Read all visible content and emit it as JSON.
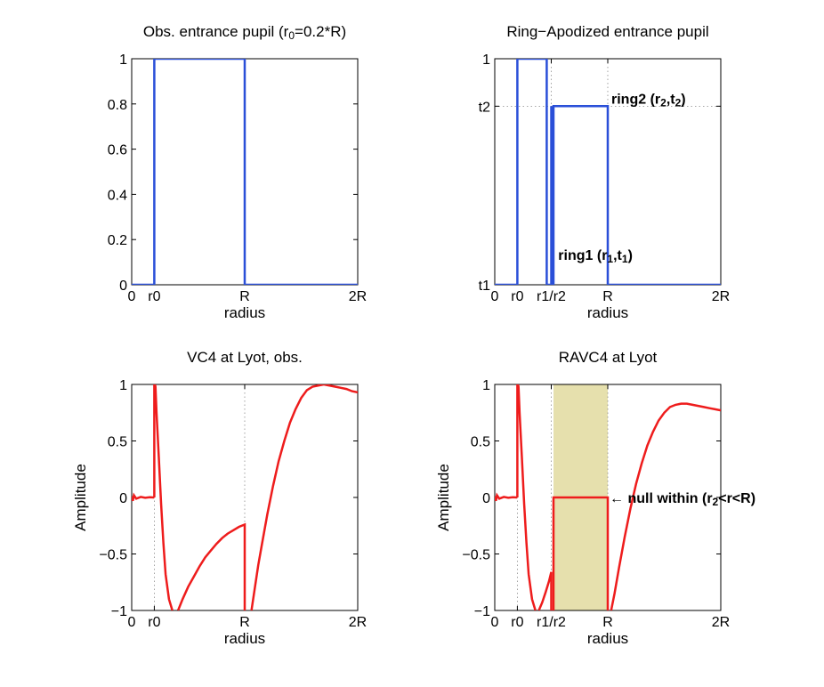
{
  "colors": {
    "pupil_line": "#2a4fd8",
    "amplitude_line": "#ee1c1c",
    "shade": "#e6e0ad",
    "grid": "#8c8c8c",
    "axis": "#000000"
  },
  "chart_data": [
    {
      "type": "line",
      "title_parts": [
        "Obs. entrance pupil (r",
        "0",
        "=0.2*R)"
      ],
      "xlabel": "radius",
      "ylabel": "",
      "xlim": [
        0,
        2
      ],
      "ylim": [
        0,
        1
      ],
      "xticks": [
        0,
        0.2,
        1,
        2
      ],
      "xticklabels": [
        "0",
        "r0",
        "R",
        "2R"
      ],
      "yticks": [
        0,
        0.2,
        0.4,
        0.6,
        0.8,
        1
      ],
      "yticklabels": [
        "0",
        "0.2",
        "0.4",
        "0.6",
        "0.8",
        "1"
      ],
      "grid_x": [
        0.2,
        1
      ],
      "series": [
        {
          "x": [
            0,
            0.2,
            0.2,
            1,
            1,
            2
          ],
          "y": [
            0,
            0,
            1,
            1,
            0,
            0
          ]
        }
      ]
    },
    {
      "type": "line",
      "title_parts": [
        "Ring−Apodized entrance pupil"
      ],
      "xlabel": "radius",
      "ylabel": "",
      "xlim": [
        0,
        2
      ],
      "ylim": [
        0,
        1
      ],
      "xticks": [
        0,
        0.2,
        0.5,
        1,
        2
      ],
      "xticklabels": [
        "0",
        "r0",
        "r1/r2",
        "R",
        "2R"
      ],
      "yticks": [
        0,
        0.79,
        1
      ],
      "yticklabels": [
        "t1",
        "t2",
        "1"
      ],
      "grid_x": [
        0.2,
        0.5,
        1
      ],
      "grid_y": [
        0.79
      ],
      "series": [
        {
          "x": [
            0,
            0.2,
            0.2,
            0.46,
            0.46,
            0.5,
            0.5,
            0.5,
            0.5,
            0.52,
            0.52,
            1,
            1,
            2
          ],
          "y": [
            0,
            0,
            1,
            1,
            0,
            0,
            0.79,
            0.79,
            0,
            0,
            0.79,
            0.79,
            0,
            0
          ]
        }
      ],
      "annotations": [
        {
          "x": 1.0,
          "y": 0.79,
          "text": [
            "ring2 (r",
            "2",
            ",t",
            "2",
            ")"
          ]
        },
        {
          "x": 0.53,
          "y": 0.07,
          "text": [
            "ring1 (r",
            "1",
            ",t",
            "1",
            ")"
          ]
        }
      ]
    },
    {
      "type": "line",
      "title_parts": [
        "VC4 at Lyot, obs."
      ],
      "xlabel": "radius",
      "ylabel": "Amplitude",
      "xlim": [
        0,
        2
      ],
      "ylim": [
        -1,
        1
      ],
      "xticks": [
        0,
        0.2,
        1,
        2
      ],
      "xticklabels": [
        "0",
        "r0",
        "R",
        "2R"
      ],
      "yticks": [
        -1,
        -0.5,
        0,
        0.5,
        1
      ],
      "yticklabels": [
        "−1",
        "−0.5",
        "0",
        "0.5",
        "1"
      ],
      "grid_x": [
        0.2,
        1
      ],
      "series": [
        {
          "x": [
            0,
            0.01,
            0.02,
            0.04,
            0.08,
            0.12,
            0.16,
            0.19,
            0.199
          ],
          "y": [
            0.01,
            -0.03,
            0.02,
            -0.01,
            0.005,
            -0.003,
            0.002,
            0.0,
            0.0
          ]
        },
        {
          "x": [
            0.2,
            0.2,
            0.205,
            0.21,
            0.22,
            0.24,
            0.26,
            0.28,
            0.3,
            0.33,
            0.36
          ],
          "y": [
            0,
            1,
            1,
            0.98,
            0.75,
            0.35,
            -0.05,
            -0.4,
            -0.68,
            -0.9,
            -1
          ]
        },
        {
          "x": [
            0.41,
            0.45,
            0.5,
            0.55,
            0.6,
            0.65,
            0.7,
            0.75,
            0.8,
            0.85,
            0.9,
            0.95,
            1.0,
            1.0
          ],
          "y": [
            -1,
            -0.9,
            -0.79,
            -0.7,
            -0.61,
            -0.53,
            -0.47,
            -0.41,
            -0.36,
            -0.32,
            -0.29,
            -0.26,
            -0.24,
            -1
          ]
        },
        {
          "x": [
            1.06,
            1.09,
            1.12,
            1.15,
            1.2,
            1.25,
            1.3,
            1.35,
            1.4,
            1.45,
            1.5,
            1.55,
            1.6,
            1.65,
            1.7,
            1.75,
            1.8,
            1.85,
            1.9,
            1.95,
            2.0
          ],
          "y": [
            -1,
            -0.8,
            -0.6,
            -0.43,
            -0.15,
            0.1,
            0.32,
            0.5,
            0.66,
            0.78,
            0.88,
            0.95,
            0.98,
            0.99,
            1.0,
            0.99,
            0.98,
            0.97,
            0.96,
            0.94,
            0.93
          ]
        }
      ]
    },
    {
      "type": "line",
      "title_parts": [
        "RAVC4 at Lyot"
      ],
      "xlabel": "radius",
      "ylabel": "Amplitude",
      "xlim": [
        0,
        2
      ],
      "ylim": [
        -1,
        1
      ],
      "xticks": [
        0,
        0.2,
        0.5,
        1,
        2
      ],
      "xticklabels": [
        "0",
        "r0",
        "r1/r2",
        "R",
        "2R"
      ],
      "yticks": [
        -1,
        -0.5,
        0,
        0.5,
        1
      ],
      "yticklabels": [
        "−1",
        "−0.5",
        "0",
        "0.5",
        "1"
      ],
      "grid_x": [
        0.2,
        0.5,
        1
      ],
      "shade": [
        0.52,
        1.0
      ],
      "series": [
        {
          "x": [
            0,
            0.01,
            0.02,
            0.04,
            0.08,
            0.12,
            0.16,
            0.19,
            0.199
          ],
          "y": [
            0.01,
            -0.03,
            0.02,
            -0.01,
            0.005,
            -0.003,
            0.002,
            0.0,
            0.0
          ]
        },
        {
          "x": [
            0.2,
            0.2,
            0.205,
            0.21,
            0.22,
            0.24,
            0.26,
            0.28,
            0.3,
            0.33,
            0.36
          ],
          "y": [
            0,
            1,
            1,
            0.98,
            0.75,
            0.35,
            -0.05,
            -0.4,
            -0.68,
            -0.9,
            -1
          ]
        },
        {
          "x": [
            0.39,
            0.42,
            0.45,
            0.48,
            0.5,
            0.5
          ],
          "y": [
            -1,
            -0.93,
            -0.84,
            -0.74,
            -0.66,
            -1
          ]
        },
        {
          "x": [
            0.52,
            0.52,
            1.0,
            1.0
          ],
          "y": [
            -1,
            0,
            0,
            -1
          ]
        },
        {
          "x": [
            1.03,
            1.06,
            1.1,
            1.15,
            1.2,
            1.25,
            1.3,
            1.35,
            1.4,
            1.45,
            1.5,
            1.55,
            1.6,
            1.65,
            1.7,
            1.75,
            1.8,
            1.85,
            1.9,
            1.95,
            2.0
          ],
          "y": [
            -1,
            -0.85,
            -0.62,
            -0.35,
            -0.1,
            0.12,
            0.3,
            0.46,
            0.58,
            0.68,
            0.75,
            0.8,
            0.82,
            0.83,
            0.83,
            0.82,
            0.81,
            0.8,
            0.79,
            0.78,
            0.77
          ]
        }
      ],
      "annotations": [
        {
          "x": 1.0,
          "y": 0.0,
          "text": [
            "← null within (r",
            "2",
            "<r<R)"
          ]
        }
      ]
    }
  ]
}
